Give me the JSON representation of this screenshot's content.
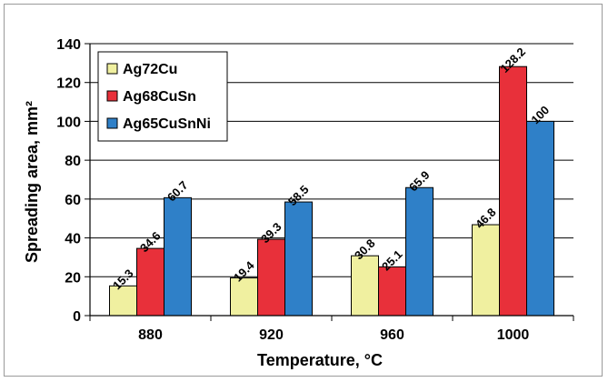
{
  "chart_data": {
    "type": "bar",
    "xlabel": "Temperature, °C",
    "ylabel": "Spreading area, mm²",
    "categories": [
      "880",
      "920",
      "960",
      "1000"
    ],
    "ylim": [
      0,
      140
    ],
    "yticks": [
      "0",
      "20",
      "40",
      "60",
      "80",
      "100",
      "120",
      "140"
    ],
    "grid": true,
    "legend_position": "top-left",
    "series": [
      {
        "name": "Ag72Cu",
        "color": "#f0f0a0",
        "values": [
          15.3,
          19.4,
          30.8,
          46.8
        ],
        "labels": [
          "15.3",
          "19.4",
          "30.8",
          "46.8"
        ]
      },
      {
        "name": "Ag68CuSn",
        "color": "#e8303a",
        "values": [
          34.6,
          39.3,
          25.1,
          128.2
        ],
        "labels": [
          "34.6",
          "39.3",
          "25.1",
          "128.2"
        ]
      },
      {
        "name": "Ag65CuSnNi",
        "color": "#2f80c8",
        "values": [
          60.7,
          58.5,
          65.9,
          100
        ],
        "labels": [
          "60.7",
          "58.5",
          "65.9",
          "100"
        ]
      }
    ]
  }
}
